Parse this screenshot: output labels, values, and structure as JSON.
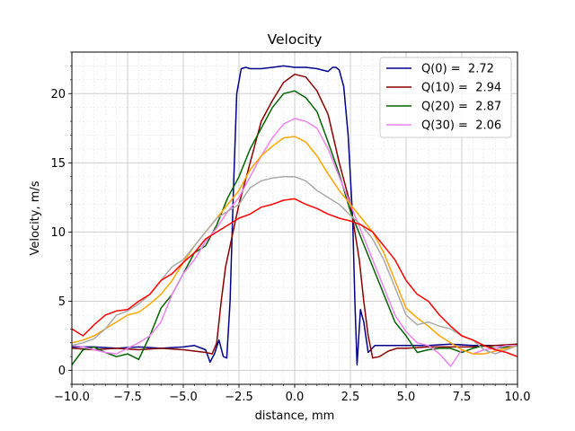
{
  "chart_data": {
    "type": "line",
    "title": "Velocity",
    "xlabel": "distance, mm",
    "ylabel": "Velocity, m/s",
    "xlim": [
      -10,
      10
    ],
    "ylim": [
      -1,
      23
    ],
    "xticks": [
      -10,
      -7.5,
      -5,
      -2.5,
      0,
      2.5,
      5,
      7.5,
      10
    ],
    "xtick_labels": [
      "−10.0",
      "−7.5",
      "−5.0",
      "−2.5",
      "0.0",
      "2.5",
      "5.0",
      "7.5",
      "10.0"
    ],
    "yticks": [
      0,
      5,
      10,
      15,
      20
    ],
    "ytick_labels": [
      "0",
      "5",
      "10",
      "15",
      "20"
    ],
    "grid": true,
    "minor_grid": true,
    "legend_position": "top-right",
    "legend": [
      {
        "label": "Q(0) =  2.72",
        "color": "#00008b"
      },
      {
        "label": "Q(10) =  2.94",
        "color": "#8b0000"
      },
      {
        "label": "Q(20) =  2.87",
        "color": "#006400"
      },
      {
        "label": "Q(30) =  2.06",
        "color": "#ee82ee"
      }
    ],
    "series": [
      {
        "name": "Q(0) =  2.72",
        "color": "#00008b",
        "x": [
          -10,
          -9,
          -8,
          -7,
          -6,
          -5,
          -4.5,
          -4,
          -3.8,
          -3.6,
          -3.4,
          -3.2,
          -3.05,
          -2.9,
          -2.75,
          -2.6,
          -2.4,
          -2.2,
          -2,
          -1.5,
          -1,
          -0.5,
          0,
          0.5,
          1,
          1.5,
          1.7,
          1.85,
          2,
          2.2,
          2.4,
          2.6,
          2.7,
          2.8,
          2.95,
          3.1,
          3.3,
          3.6,
          4,
          5,
          6,
          7,
          8,
          9,
          10
        ],
        "y": [
          1.7,
          1.7,
          1.6,
          1.7,
          1.6,
          1.7,
          1.8,
          1.5,
          0.6,
          1.2,
          2.2,
          1.0,
          0.9,
          5,
          13,
          20,
          21.8,
          21.9,
          21.8,
          21.8,
          21.9,
          22.0,
          21.9,
          21.9,
          21.8,
          21.6,
          21.9,
          21.9,
          21.7,
          20.5,
          17,
          11,
          5,
          0.4,
          4.4,
          3.5,
          1.3,
          1.8,
          1.8,
          1.8,
          1.8,
          1.9,
          1.8,
          1.8,
          1.8
        ]
      },
      {
        "name": "Q(10) =  2.94",
        "color": "#8b0000",
        "x": [
          -10,
          -9,
          -8,
          -7,
          -6,
          -5,
          -4.5,
          -4,
          -3.7,
          -3.5,
          -3.3,
          -3.1,
          -2.9,
          -2.7,
          -2.5,
          -2,
          -1.5,
          -1,
          -0.5,
          0,
          0.5,
          1,
          1.5,
          2,
          2.5,
          2.7,
          2.9,
          3.1,
          3.3,
          3.5,
          3.8,
          4.2,
          4.6,
          5,
          6,
          7,
          8,
          9,
          10
        ],
        "y": [
          1.6,
          1.5,
          1.6,
          1.5,
          1.6,
          1.5,
          1.4,
          1.3,
          1.2,
          2.0,
          5.0,
          7.5,
          9.0,
          10.5,
          12,
          15,
          18,
          19.5,
          20.8,
          21.4,
          21.2,
          20.2,
          18.5,
          15,
          12,
          10,
          8,
          5,
          2.5,
          0.9,
          1.0,
          1.4,
          1.6,
          1.6,
          1.7,
          1.7,
          1.7,
          1.8,
          1.9
        ]
      },
      {
        "name": "Q(20) =  2.87",
        "color": "#006400",
        "x": [
          -10,
          -9.5,
          -9,
          -8.5,
          -8,
          -7.5,
          -7,
          -6.5,
          -6,
          -5.5,
          -5,
          -4.5,
          -4,
          -3.5,
          -3,
          -2.5,
          -2,
          -1.5,
          -1,
          -0.5,
          0,
          0.5,
          1,
          1.5,
          2,
          2.5,
          3,
          3.5,
          4,
          4.5,
          5,
          5.5,
          6,
          6.5,
          7,
          7.5,
          8,
          8.5,
          9,
          9.5,
          10
        ],
        "y": [
          0.4,
          1.5,
          1.7,
          1.3,
          1.0,
          1.2,
          0.8,
          2.5,
          4.5,
          5.5,
          7.0,
          8.5,
          9.0,
          10.5,
          12.5,
          14,
          16,
          17.5,
          19,
          20,
          20.2,
          19.7,
          18.7,
          16.5,
          14.2,
          11.5,
          9.5,
          7.5,
          5.5,
          3.5,
          2.5,
          1.3,
          1.5,
          1.6,
          1.6,
          1.3,
          1.6,
          1.8,
          1.6,
          1.7,
          1.8
        ]
      },
      {
        "name": "Q(30) =  2.06",
        "color": "#ee82ee",
        "x": [
          -10,
          -9.5,
          -9,
          -8.5,
          -8,
          -7.5,
          -7,
          -6.5,
          -6,
          -5.5,
          -5,
          -4.5,
          -4,
          -3.5,
          -3,
          -2.5,
          -2,
          -1.5,
          -1,
          -0.5,
          0,
          0.5,
          1,
          1.5,
          2,
          2.5,
          3,
          3.5,
          4,
          4.5,
          5,
          5.5,
          6,
          6.5,
          7,
          7.5,
          8,
          8.5,
          9,
          9.5,
          10
        ],
        "y": [
          1.8,
          1.7,
          1.5,
          1.3,
          1.2,
          1.6,
          2.0,
          2.5,
          3.5,
          5.5,
          7.0,
          8.0,
          9.3,
          10.3,
          11.5,
          12.5,
          14,
          15.5,
          16.8,
          17.8,
          18.2,
          18.0,
          17.5,
          16.0,
          14.0,
          12.0,
          10.0,
          8.0,
          6.0,
          4.0,
          2.8,
          2.0,
          1.8,
          1.2,
          0.3,
          1.5,
          1.2,
          1.5,
          1.6,
          1.8,
          1.8
        ]
      },
      {
        "name": "",
        "color": "#ffa500",
        "x": [
          -10,
          -9.5,
          -9,
          -8.5,
          -8,
          -7.5,
          -7,
          -6.5,
          -6,
          -5.5,
          -5,
          -4.5,
          -4,
          -3.5,
          -3,
          -2.5,
          -2,
          -1.5,
          -1,
          -0.5,
          0,
          0.5,
          1,
          1.5,
          2,
          2.5,
          3,
          3.5,
          4,
          4.5,
          5,
          5.5,
          6,
          6.5,
          7,
          7.5,
          8,
          8.5,
          9,
          9.5,
          10
        ],
        "y": [
          2.0,
          2.2,
          2.5,
          3.0,
          3.5,
          4.0,
          4.2,
          4.8,
          5.5,
          6.5,
          7.8,
          9.0,
          10.0,
          11.0,
          12.0,
          13.0,
          14.5,
          15.5,
          16.2,
          16.8,
          16.9,
          16.5,
          15.5,
          14.2,
          13.0,
          12.0,
          11.0,
          10.0,
          8.5,
          6.5,
          4.5,
          3.8,
          3.2,
          2.5,
          2.0,
          1.5,
          1.2,
          1.2,
          1.4,
          1.6,
          1.8
        ]
      },
      {
        "name": "",
        "color": "#a9a9a9",
        "x": [
          -10,
          -9.5,
          -9,
          -8.5,
          -8,
          -7.5,
          -7,
          -6.5,
          -6,
          -5.5,
          -5,
          -4.5,
          -4,
          -3.5,
          -3,
          -2.5,
          -2,
          -1.5,
          -1,
          -0.5,
          0,
          0.5,
          1,
          1.5,
          2,
          2.5,
          3,
          3.5,
          4,
          4.5,
          5,
          5.5,
          6,
          6.5,
          7,
          7.5,
          8,
          8.5,
          9,
          9.5,
          10
        ],
        "y": [
          1.8,
          2.0,
          2.3,
          3.0,
          4.0,
          4.3,
          4.8,
          5.5,
          6.5,
          7.5,
          8.0,
          9.0,
          10.0,
          11.0,
          11.5,
          12.0,
          13.2,
          13.7,
          13.9,
          14.0,
          14.0,
          13.7,
          13.0,
          12.5,
          12.0,
          11.2,
          10.5,
          9.5,
          8.0,
          6.0,
          4.0,
          3.3,
          3.5,
          3.2,
          3.0,
          2.5,
          2.2,
          1.5,
          1.2,
          1.5,
          1.8
        ]
      },
      {
        "name": "",
        "color": "#ff0000",
        "x": [
          -10,
          -9.5,
          -9,
          -8.5,
          -8,
          -7.5,
          -7,
          -6.5,
          -6,
          -5.5,
          -5,
          -4.5,
          -4,
          -3.5,
          -3,
          -2.5,
          -2,
          -1.5,
          -1,
          -0.5,
          0,
          0.5,
          1,
          1.5,
          2,
          2.5,
          3,
          3.5,
          4,
          4.5,
          5,
          5.5,
          6,
          6.5,
          7,
          7.5,
          8,
          8.5,
          9,
          9.5,
          10
        ],
        "y": [
          3.0,
          2.5,
          3.3,
          4.0,
          4.3,
          4.4,
          5.0,
          5.5,
          6.5,
          7.0,
          7.8,
          8.5,
          9.5,
          10.0,
          10.5,
          11.0,
          11.3,
          11.8,
          12.0,
          12.3,
          12.4,
          12.0,
          11.7,
          11.3,
          11.0,
          10.8,
          10.5,
          10.0,
          9.0,
          8.0,
          6.5,
          5.5,
          5.0,
          4.0,
          3.2,
          2.5,
          2.2,
          1.8,
          1.5,
          1.3,
          1.0
        ]
      }
    ]
  }
}
